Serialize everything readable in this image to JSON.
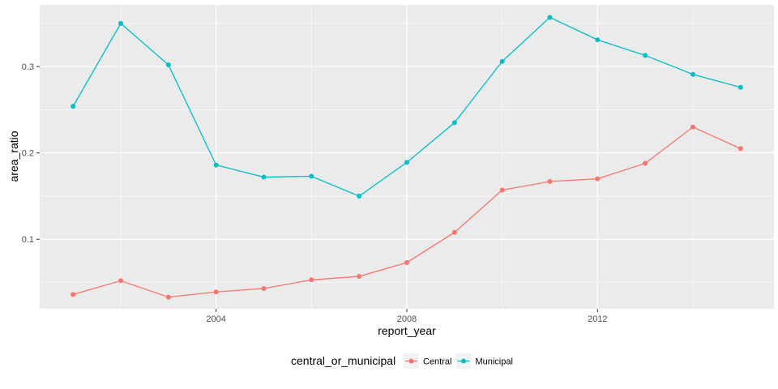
{
  "chart_data": {
    "type": "line",
    "title": "",
    "xlabel": "report_year",
    "ylabel": "area_ratio",
    "x": [
      2001,
      2002,
      2003,
      2004,
      2005,
      2006,
      2007,
      2008,
      2009,
      2010,
      2011,
      2012,
      2013,
      2014,
      2015
    ],
    "x_ticks": [
      2004,
      2008,
      2012
    ],
    "y_ticks": [
      0.1,
      0.2,
      0.3
    ],
    "x_tick_labels": [
      "2004",
      "2008",
      "2012"
    ],
    "y_tick_labels": [
      "0.1",
      "0.2",
      "0.3"
    ],
    "xlim": [
      2000.3,
      2015.7
    ],
    "ylim": [
      0.0195,
      0.3715
    ],
    "grid": true,
    "legend": {
      "title": "central_or_municipal",
      "position": "bottom"
    },
    "series": [
      {
        "name": "Central",
        "color": "#F8766D",
        "values": [
          0.036,
          0.052,
          0.033,
          0.039,
          0.043,
          0.053,
          0.057,
          0.073,
          0.108,
          0.157,
          0.167,
          0.17,
          0.188,
          0.23,
          0.205
        ]
      },
      {
        "name": "Municipal",
        "color": "#00BFC4",
        "values": [
          0.254,
          0.35,
          0.302,
          0.186,
          0.172,
          0.173,
          0.15,
          0.189,
          0.235,
          0.306,
          0.357,
          0.331,
          0.313,
          0.291,
          0.276
        ]
      }
    ],
    "panel_background": "#EBEBEB",
    "gridline_color": "#FFFFFF"
  }
}
